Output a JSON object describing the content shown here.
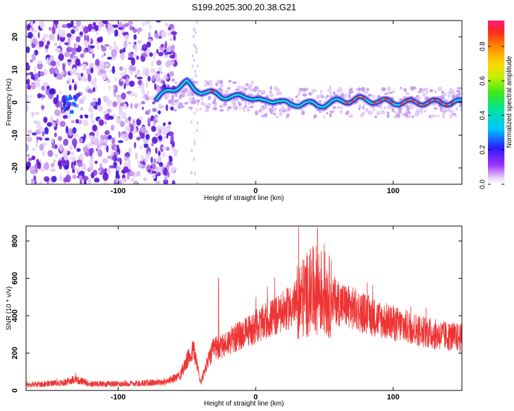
{
  "chart_data": [
    {
      "type": "heatmap",
      "title": "S199.2025.300.20.38.G21",
      "xlabel": "Height of straight line (km)",
      "ylabel": "Frequency (Hz)",
      "xlim": [
        -167,
        150
      ],
      "ylim": [
        -25,
        25
      ],
      "xticks": [
        -100,
        0,
        100
      ],
      "yticks": [
        -20,
        -10,
        0,
        10,
        20
      ],
      "colorbar": {
        "label": "Normalized spectral amplitude",
        "range": [
          0,
          0.95
        ],
        "ticks": [
          "0.0",
          "0.2",
          "0.4",
          "0.6",
          "0.8"
        ]
      },
      "ridge": {
        "description_points_x": [
          -72,
          -62,
          -55,
          -50,
          -45,
          -35,
          -25,
          -15,
          -5,
          5,
          15,
          25,
          35,
          45,
          55,
          65,
          75,
          85,
          100,
          120,
          140,
          150
        ],
        "description_points_y": [
          1,
          4,
          5,
          6,
          4,
          3,
          2,
          1.5,
          2,
          0,
          1,
          -1,
          0,
          -1,
          0,
          0.5,
          1,
          0.5,
          0,
          0,
          0,
          0
        ]
      }
    },
    {
      "type": "line",
      "title": "",
      "xlabel": "Height of straight line (km)",
      "ylabel": "SNR (10 * v/v)",
      "xlim": [
        -167,
        150
      ],
      "ylim": [
        0,
        880
      ],
      "xticks": [
        -100,
        0,
        100
      ],
      "yticks": [
        0,
        200,
        400,
        600,
        800
      ],
      "series": [
        {
          "name": "SNR",
          "color": "#ee3333",
          "envelope_x": [
            -167,
            -140,
            -132,
            -120,
            -100,
            -80,
            -65,
            -55,
            -50,
            -45,
            -40,
            -35,
            -30,
            -25,
            -20,
            -10,
            0,
            10,
            20,
            30,
            40,
            45,
            50,
            60,
            70,
            80,
            90,
            100,
            110,
            120,
            130,
            140,
            150
          ],
          "envelope_y": [
            30,
            40,
            60,
            35,
            35,
            40,
            45,
            80,
            160,
            220,
            40,
            150,
            230,
            230,
            260,
            300,
            340,
            380,
            420,
            470,
            530,
            540,
            520,
            470,
            440,
            410,
            380,
            360,
            340,
            320,
            300,
            290,
            280
          ]
        }
      ]
    }
  ]
}
